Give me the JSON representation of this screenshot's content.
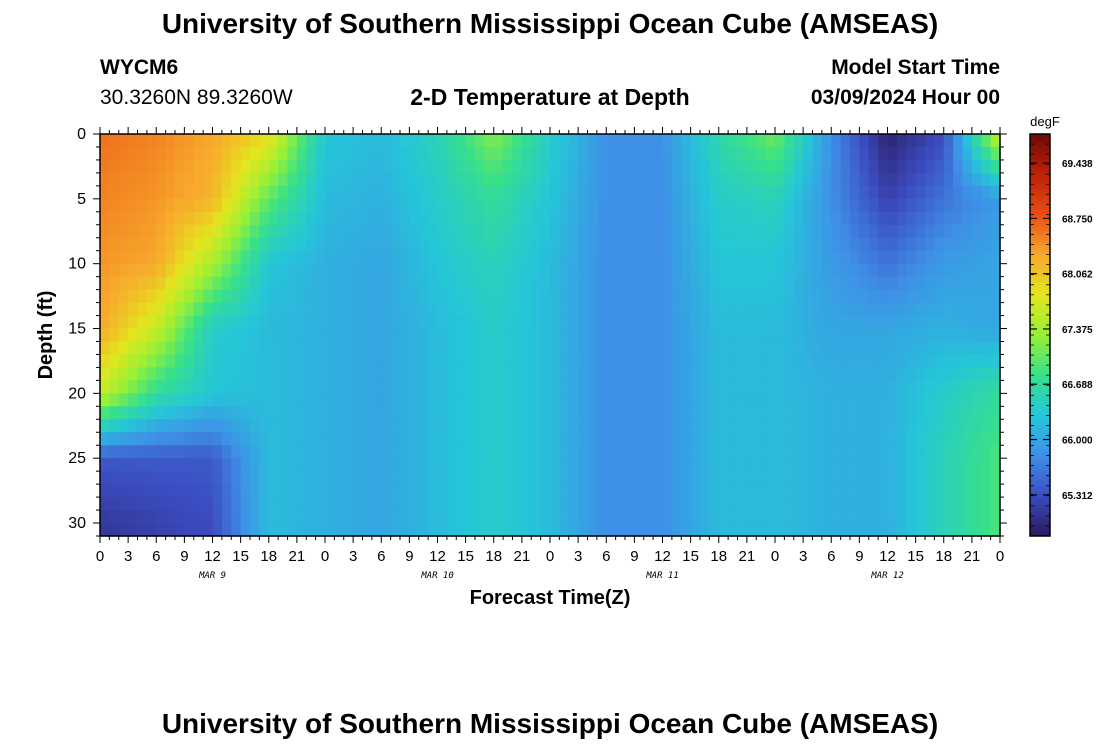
{
  "header": {
    "title": "University of Southern Mississippi Ocean Cube (AMSEAS)",
    "station_id": "WYCM6",
    "station_coords": "30.3260N  89.3260W",
    "plot_title": "2-D Temperature at Depth",
    "start_label": "Model Start Time",
    "start_value": "03/09/2024 Hour 00"
  },
  "footer": {
    "title": "University of Southern Mississippi Ocean Cube (AMSEAS)"
  },
  "chart_data": {
    "type": "heatmap",
    "title": "2-D Temperature at Depth",
    "xlabel": "Forecast Time(Z)",
    "ylabel": "Depth (ft)",
    "x_units": "hours since model start",
    "xlim": [
      0,
      96
    ],
    "ylim": [
      31,
      0
    ],
    "x_tick_labels": [
      "0",
      "3",
      "6",
      "9",
      "12",
      "15",
      "18",
      "21",
      "0",
      "3",
      "6",
      "9",
      "12",
      "15",
      "18",
      "21",
      "0",
      "3",
      "6",
      "9",
      "12",
      "15",
      "18",
      "21",
      "0",
      "3",
      "6",
      "9",
      "12",
      "15",
      "18",
      "21",
      "0"
    ],
    "day_labels": [
      {
        "label": "MAR 9",
        "x": 12
      },
      {
        "label": "MAR 10",
        "x": 36
      },
      {
        "label": "MAR 11",
        "x": 60
      },
      {
        "label": "MAR 12",
        "x": 84
      }
    ],
    "y_ticks": [
      0,
      5,
      10,
      15,
      20,
      25,
      30
    ],
    "y_tick_labels": [
      "0",
      "5",
      "10",
      "15",
      "20",
      "25",
      "30"
    ],
    "colorbar": {
      "unit": "degF",
      "min": 64.8,
      "max": 69.8,
      "tick_values": [
        69.438,
        68.75,
        68.062,
        67.375,
        66.688,
        66.0,
        65.312
      ],
      "tick_labels": [
        "69.438",
        "68.750",
        "68.062",
        "67.375",
        "66.688",
        "66.000",
        "65.312"
      ],
      "colors": [
        "#2a1a5e",
        "#3b4cc0",
        "#3f90e8",
        "#25c6d8",
        "#38e08a",
        "#98f036",
        "#e3e61e",
        "#f8a82c",
        "#e84d12",
        "#c02008",
        "#6e0a08"
      ]
    },
    "depths_ft": [
      0,
      5,
      10,
      15,
      20,
      25,
      30
    ],
    "times_h": [
      0,
      6,
      12,
      18,
      24,
      30,
      36,
      42,
      48,
      54,
      60,
      66,
      72,
      78,
      84,
      90,
      96
    ],
    "temperature_degF": [
      [
        68.6,
        68.5,
        68.3,
        67.9,
        66.3,
        66.2,
        66.5,
        67.2,
        66.4,
        65.8,
        65.8,
        66.6,
        67.1,
        65.8,
        64.9,
        65.3,
        67.7
      ],
      [
        68.5,
        68.4,
        68.2,
        67.0,
        66.2,
        66.1,
        66.4,
        66.7,
        66.3,
        65.8,
        65.8,
        66.4,
        66.5,
        65.8,
        65.2,
        65.6,
        65.9
      ],
      [
        68.4,
        68.3,
        67.4,
        66.3,
        66.1,
        66.0,
        66.3,
        66.5,
        66.2,
        65.8,
        65.8,
        66.3,
        66.3,
        65.9,
        65.6,
        65.9,
        66.0
      ],
      [
        68.3,
        67.6,
        66.4,
        66.2,
        66.1,
        66.0,
        66.2,
        66.4,
        66.2,
        65.8,
        65.8,
        66.2,
        66.2,
        66.0,
        66.0,
        66.1,
        66.0
      ],
      [
        67.6,
        66.7,
        66.3,
        66.2,
        66.1,
        66.0,
        66.2,
        66.4,
        66.2,
        65.8,
        65.8,
        66.2,
        66.2,
        66.1,
        66.1,
        66.4,
        66.7
      ],
      [
        65.4,
        65.4,
        65.4,
        66.2,
        66.1,
        66.0,
        66.2,
        66.4,
        66.2,
        65.8,
        65.8,
        66.2,
        66.2,
        66.1,
        66.1,
        66.5,
        66.9
      ],
      [
        65.1,
        65.2,
        65.3,
        66.2,
        66.1,
        66.0,
        66.2,
        66.4,
        66.2,
        65.8,
        65.8,
        66.2,
        66.2,
        66.1,
        66.1,
        66.5,
        66.9
      ]
    ]
  }
}
